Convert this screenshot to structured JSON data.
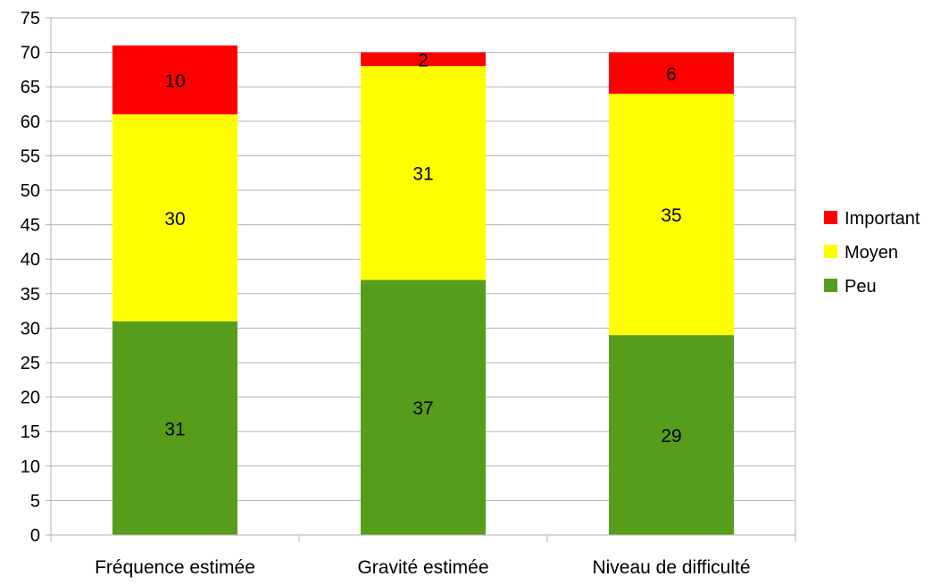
{
  "chart_data": {
    "type": "bar",
    "stacked": true,
    "categories": [
      "Fréquence estimée",
      "Gravité estimée",
      "Niveau de difficulté"
    ],
    "series": [
      {
        "name": "Peu",
        "values": [
          31,
          37,
          29
        ],
        "color": "#579d1c"
      },
      {
        "name": "Moyen",
        "values": [
          30,
          31,
          35
        ],
        "color": "#ffff00"
      },
      {
        "name": "Important",
        "values": [
          10,
          2,
          6
        ],
        "color": "#ff0000"
      }
    ],
    "title": "",
    "xlabel": "",
    "ylabel": "",
    "ylim": [
      0,
      75
    ],
    "ytick_step": 5,
    "grid": true,
    "legend_position": "right",
    "legend_order": [
      "Important",
      "Moyen",
      "Peu"
    ],
    "grid_color": "#b3b3b3",
    "axis_color": "#b3b3b3"
  }
}
